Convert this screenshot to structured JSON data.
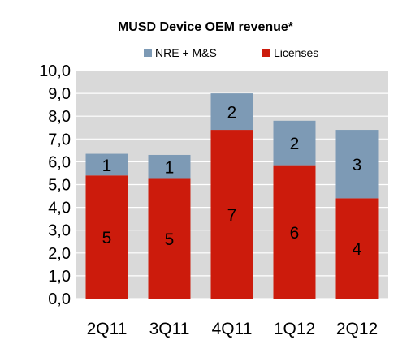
{
  "chart_data": {
    "type": "bar",
    "stacked": true,
    "title": "MUSD Device OEM revenue*",
    "xlabel": "",
    "ylabel": "",
    "categories": [
      "2Q11",
      "3Q11",
      "4Q11",
      "1Q12",
      "2Q12"
    ],
    "series": [
      {
        "name": "Licenses",
        "color": "#cc1b0c",
        "values": [
          5.4,
          5.25,
          7.4,
          5.85,
          4.4
        ],
        "labels": [
          "5",
          "5",
          "7",
          "6",
          "4"
        ]
      },
      {
        "name": "NRE + M&S",
        "color": "#7d9ab5",
        "values": [
          0.95,
          1.05,
          1.6,
          1.95,
          3.0
        ],
        "labels": [
          "1",
          "1",
          "2",
          "2",
          "3"
        ]
      }
    ],
    "ylim": [
      0,
      10
    ],
    "yticks": [
      "0,0",
      "1,0",
      "2,0",
      "3,0",
      "4,0",
      "5,0",
      "6,0",
      "7,0",
      "8,0",
      "9,0",
      "10,0"
    ],
    "grid": true,
    "legend": {
      "position": "top",
      "order": [
        "NRE + M&S",
        "Licenses"
      ]
    },
    "plot_background": "#d9d9d9"
  }
}
